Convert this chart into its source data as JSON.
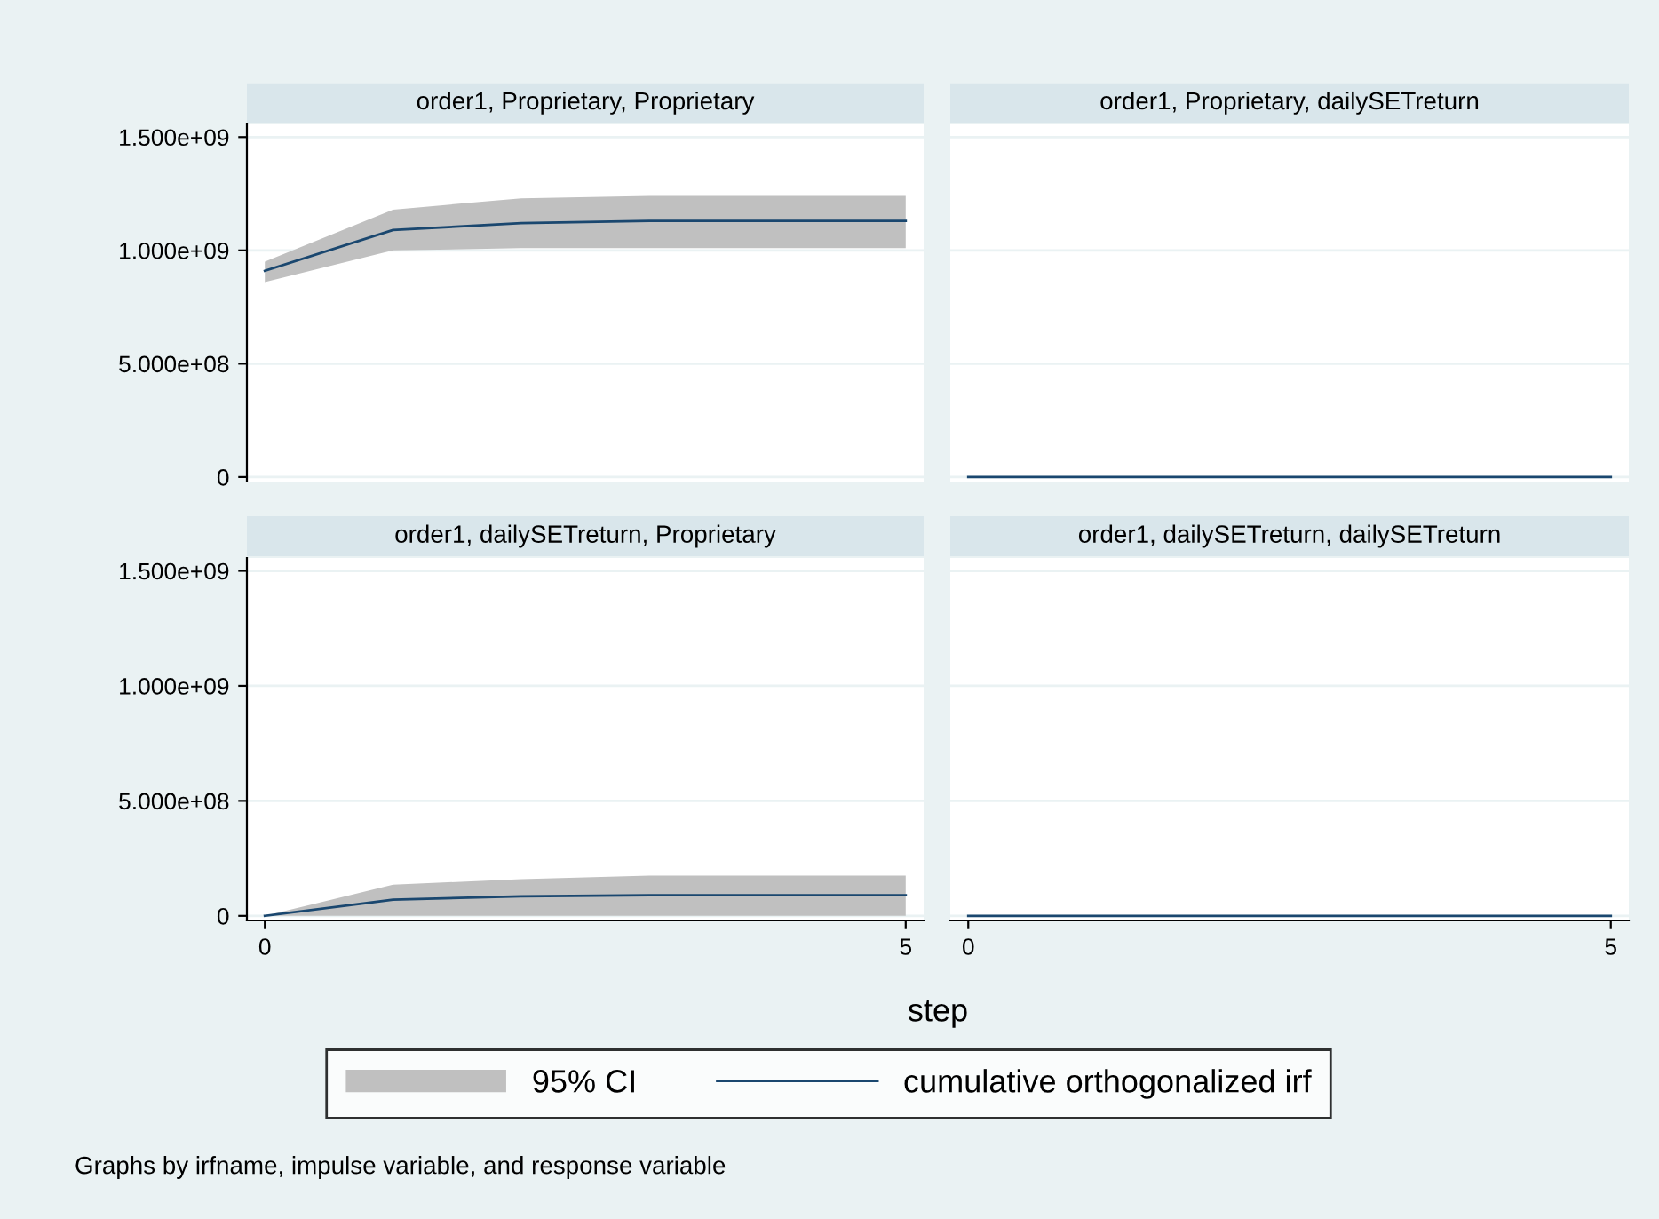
{
  "chart_data": [
    {
      "type": "line",
      "title": "order1, Proprietary, Proprietary",
      "x": [
        0,
        1,
        2,
        3,
        4,
        5
      ],
      "xlim": [
        -0.14,
        5.14
      ],
      "xticks": [
        0,
        5
      ],
      "ylim": [
        -20000000,
        1556000000
      ],
      "yticks": [
        {
          "value": 0,
          "label": "0"
        },
        {
          "value": 500000000,
          "label": "5.000e+08"
        },
        {
          "value": 1000000000,
          "label": "1.000e+09"
        },
        {
          "value": 1500000000,
          "label": "1.500e+09"
        }
      ],
      "tick_labels": "y",
      "grid": "y",
      "series": [
        {
          "color": "#1a476f",
          "values": [
            910000000,
            1090000000,
            1120000000,
            1130000000,
            1130000000,
            1130000000
          ],
          "lower": [
            860000000,
            1000000000,
            1010000000,
            1010000000,
            1010000000,
            1010000000
          ],
          "upper": [
            950000000,
            1180000000,
            1230000000,
            1240000000,
            1240000000,
            1240000000
          ]
        }
      ]
    },
    {
      "type": "line",
      "title": "order1, Proprietary, dailySETreturn",
      "x": [
        0,
        1,
        2,
        3,
        4,
        5
      ],
      "xlim": [
        -0.14,
        5.14
      ],
      "xticks": [
        0,
        5
      ],
      "ylim": [
        -20000000,
        1556000000
      ],
      "yticks": [
        0,
        500000000,
        1000000000,
        1500000000
      ],
      "tick_labels": false,
      "grid": "y",
      "series": [
        {
          "color": "#1a476f",
          "values": [
            0,
            0,
            0,
            0,
            0,
            0
          ]
        }
      ]
    },
    {
      "type": "line",
      "title": "order1, dailySETreturn, Proprietary",
      "xlabel": "step",
      "x": [
        0,
        1,
        2,
        3,
        4,
        5
      ],
      "xlim": [
        -0.14,
        5.14
      ],
      "xticks": [
        0,
        5
      ],
      "ylim": [
        -20000000,
        1556000000
      ],
      "yticks": [
        {
          "value": 0,
          "label": "0"
        },
        {
          "value": 500000000,
          "label": "5.000e+08"
        },
        {
          "value": 1000000000,
          "label": "1.000e+09"
        },
        {
          "value": 1500000000,
          "label": "1.500e+09"
        }
      ],
      "grid": "y",
      "legend": "bottom",
      "annotations": [
        "95% CI",
        "Graphs by irfname, impulse variable, and response variable"
      ],
      "series": [
        {
          "name": "cumulative orthogonalized irf",
          "color": "#1a476f",
          "values": [
            0,
            70000000,
            85000000,
            90000000,
            90000000,
            90000000
          ],
          "lower": [
            0,
            0,
            0,
            0,
            0,
            0
          ],
          "upper": [
            0,
            135000000,
            160000000,
            175000000,
            175000000,
            175000000
          ]
        }
      ]
    },
    {
      "type": "line",
      "title": "order1, dailySETreturn, dailySETreturn",
      "x": [
        0,
        1,
        2,
        3,
        4,
        5
      ],
      "xlim": [
        -0.14,
        5.14
      ],
      "xticks": [
        0,
        5
      ],
      "ylim": [
        -20000000,
        1556000000
      ],
      "yticks": [
        0,
        500000000,
        1000000000,
        1500000000
      ],
      "tick_labels": "x",
      "grid": "y",
      "series": [
        {
          "color": "#1a476f",
          "values": [
            0,
            0,
            0,
            0,
            0,
            0
          ]
        }
      ]
    }
  ]
}
